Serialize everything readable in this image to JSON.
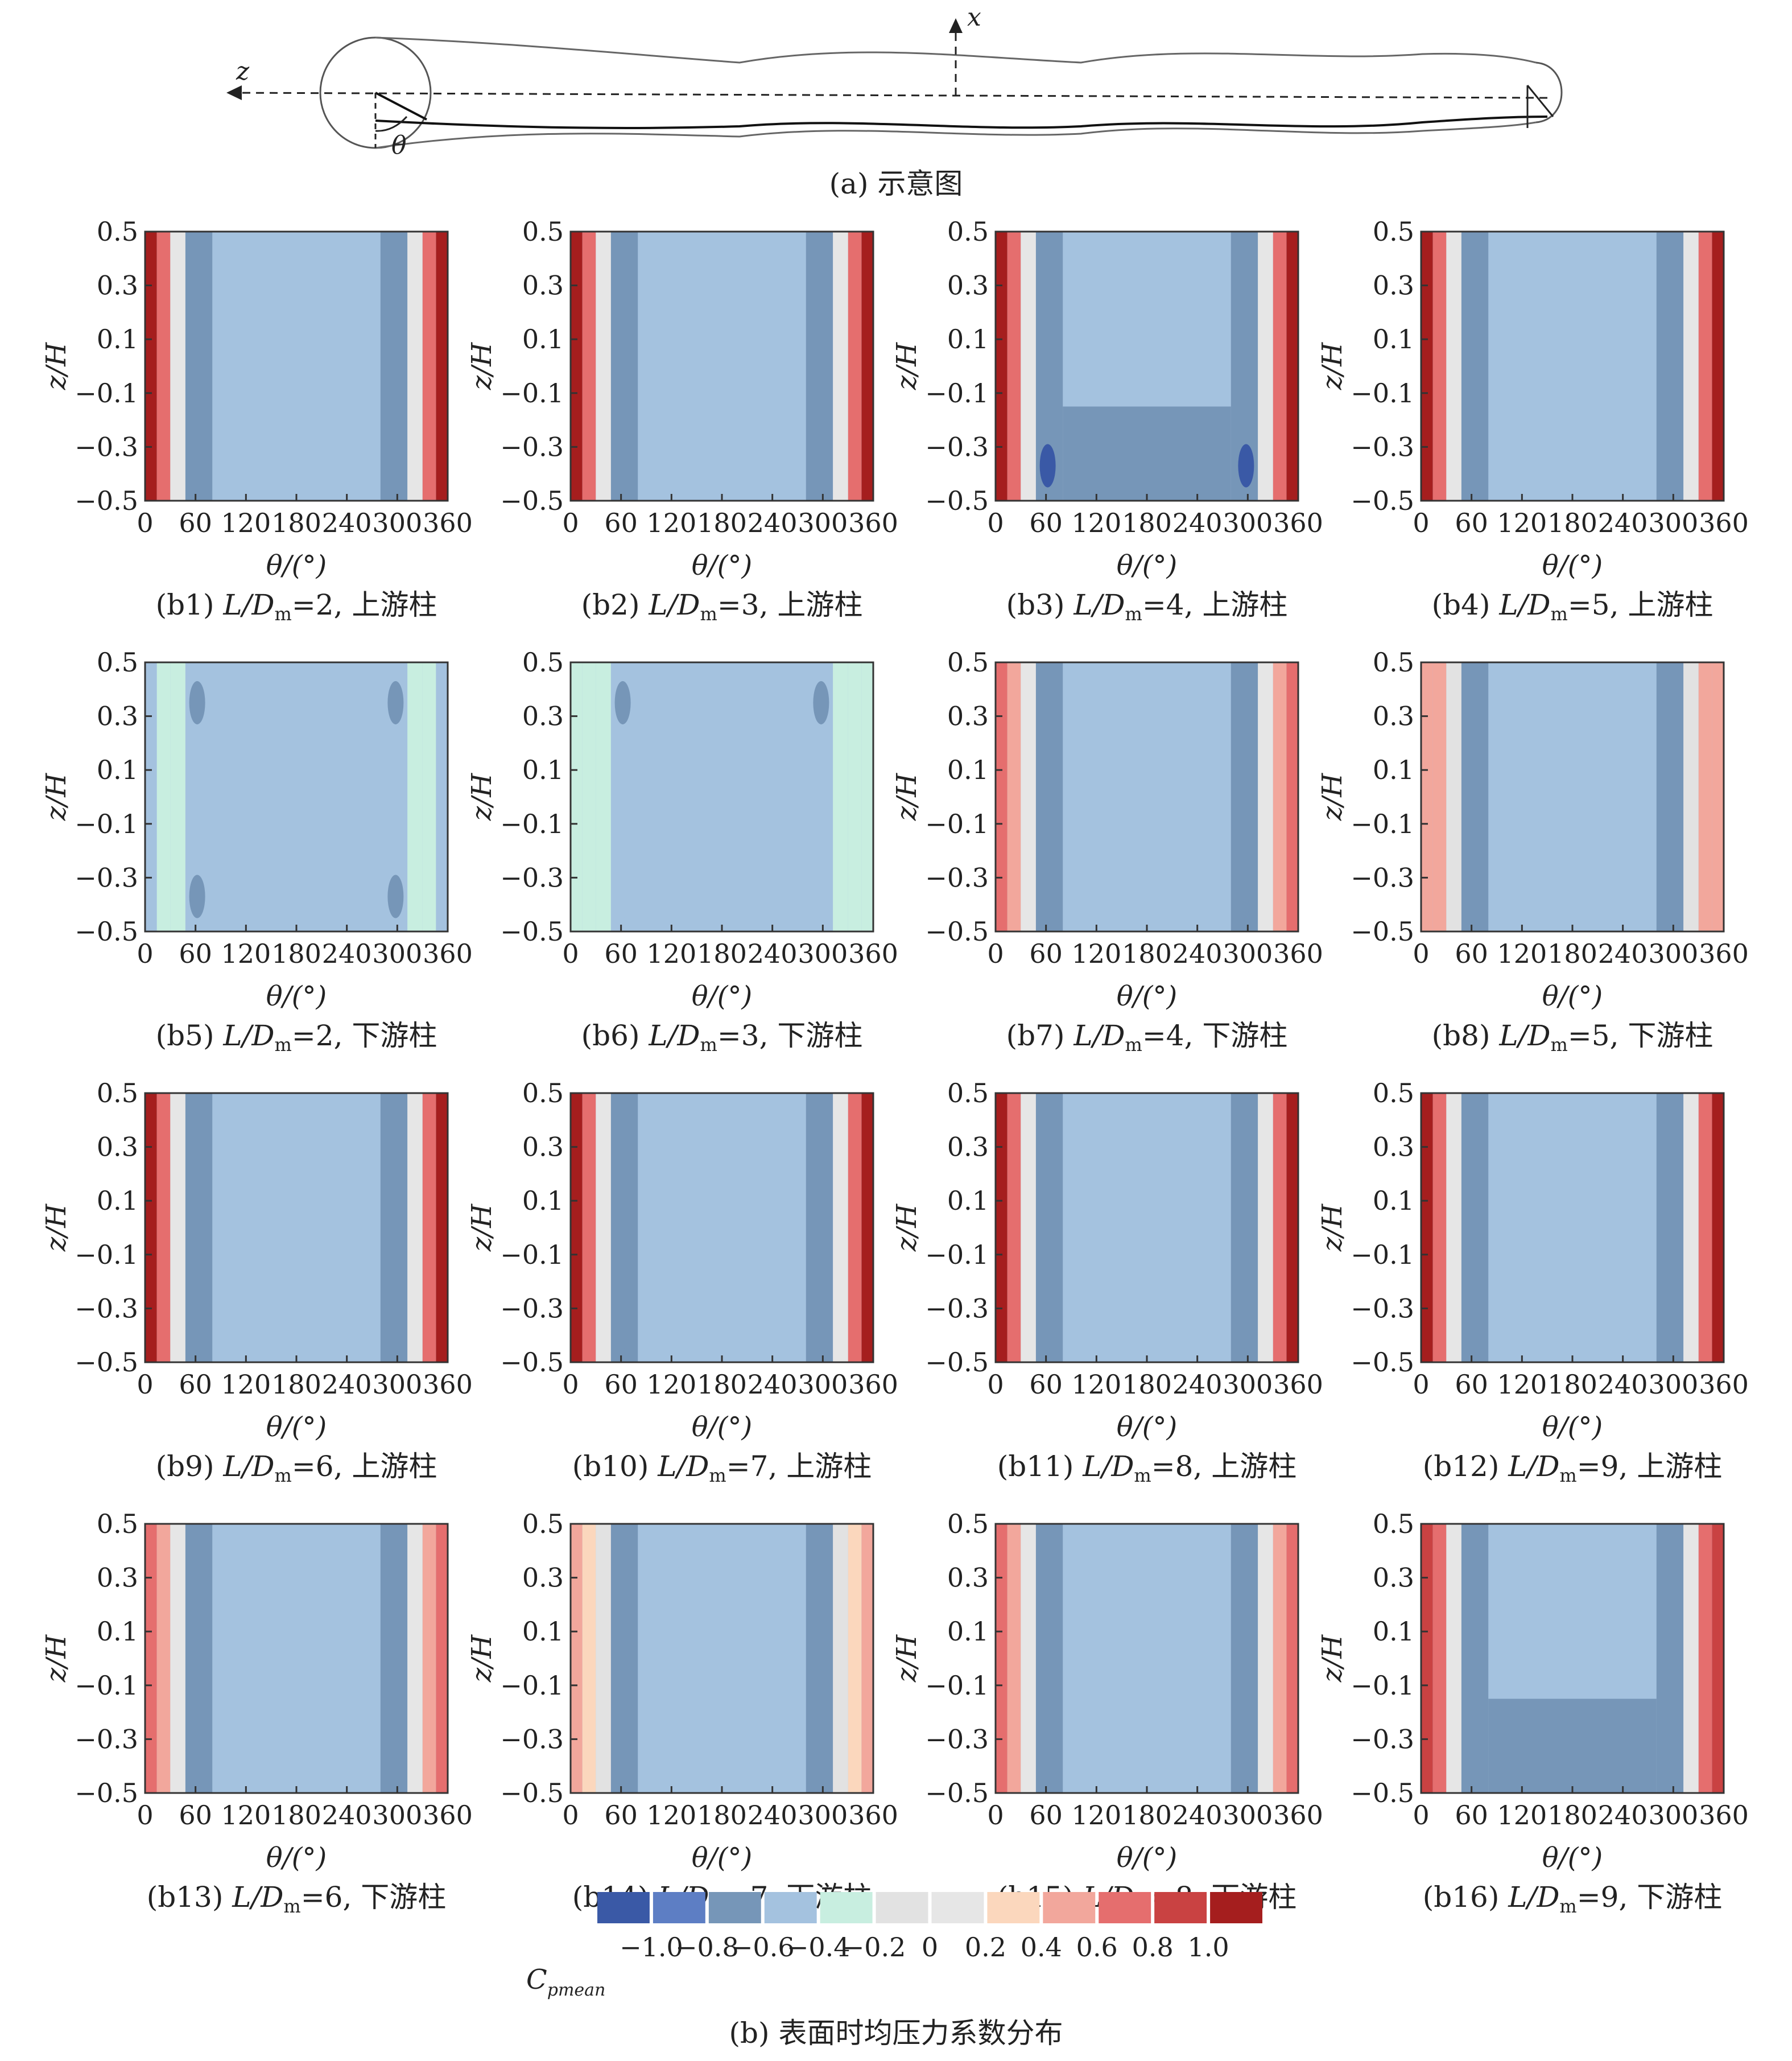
{
  "schematic": {
    "caption": "(a) 示意图",
    "x_label": "x",
    "z_label": "z",
    "theta_label": "θ"
  },
  "panel_axis": {
    "xlabel": "θ/(°)",
    "ylabel": "z/H",
    "x_ticks": [
      "0",
      "60",
      "120",
      "180",
      "240",
      "300",
      "360"
    ],
    "y_ticks": [
      "0.5",
      "0.3",
      "0.1",
      "−0.1",
      "−0.3",
      "−0.5"
    ]
  },
  "legend": {
    "label": "C",
    "label_sub": "pmean",
    "tick_labels": [
      "−1.0",
      "−0.8",
      "−0.6",
      "−0.4",
      "−0.2",
      "0",
      "0.2",
      "0.4",
      "0.6",
      "0.8",
      "1.0"
    ],
    "colors": [
      "#3a59a6",
      "#5d7ec4",
      "#7696b8",
      "#a4c2df",
      "#c8eee0",
      "#e2e2e2",
      "#e6e6e6",
      "#fbd7bd",
      "#f2a79c",
      "#e56e6e",
      "#c94242",
      "#a51e1e"
    ]
  },
  "figure_caption": "(b) 表面时均压力系数分布",
  "chart_data": {
    "type": "heatmap",
    "x_range": [
      0,
      360
    ],
    "y_range": [
      -0.5,
      0.5
    ],
    "value_range": [
      -1.0,
      1.0
    ],
    "panels": [
      {
        "id": "b1",
        "label": "(b1)",
        "ratio": "2",
        "cylinder": "上游柱",
        "center_value": -0.4,
        "center_lower": -0.5,
        "side_value": -0.6,
        "lower_value": -0.6,
        "edge_value": 1.0
      },
      {
        "id": "b2",
        "label": "(b2)",
        "ratio": "3",
        "cylinder": "上游柱",
        "center_value": -0.4,
        "center_lower": -0.4,
        "side_value": -0.6,
        "lower_value": -0.5,
        "edge_value": 1.0
      },
      {
        "id": "b3",
        "label": "(b3)",
        "ratio": "4",
        "cylinder": "上游柱",
        "center_value": -0.4,
        "center_lower": -0.6,
        "side_value": -0.7,
        "lower_value": -0.9,
        "edge_value": 1.0
      },
      {
        "id": "b4",
        "label": "(b4)",
        "ratio": "5",
        "cylinder": "上游柱",
        "center_value": -0.4,
        "center_lower": -0.5,
        "side_value": -0.6,
        "lower_value": -0.7,
        "edge_value": 1.0
      },
      {
        "id": "b5",
        "label": "(b5)",
        "ratio": "2",
        "cylinder": "下游柱",
        "center_value": -0.4,
        "center_lower": -0.5,
        "side_value": -0.5,
        "lower_value": -0.5,
        "edge_value": -0.5
      },
      {
        "id": "b6",
        "label": "(b6)",
        "ratio": "3",
        "cylinder": "下游柱",
        "center_value": -0.4,
        "center_lower": -0.4,
        "side_value": -0.5,
        "lower_value": -0.4,
        "edge_value": -0.3
      },
      {
        "id": "b7",
        "label": "(b7)",
        "ratio": "4",
        "cylinder": "下游柱",
        "center_value": -0.4,
        "center_lower": -0.5,
        "side_value": -0.6,
        "lower_value": -0.6,
        "edge_value": 0.7
      },
      {
        "id": "b8",
        "label": "(b8)",
        "ratio": "5",
        "cylinder": "下游柱",
        "center_value": -0.4,
        "center_lower": -0.5,
        "side_value": -0.6,
        "lower_value": -0.6,
        "edge_value": 0.6
      },
      {
        "id": "b9",
        "label": "(b9)",
        "ratio": "6",
        "cylinder": "上游柱",
        "center_value": -0.4,
        "center_lower": -0.5,
        "side_value": -0.6,
        "lower_value": -0.5,
        "edge_value": 1.0
      },
      {
        "id": "b10",
        "label": "(b10)",
        "ratio": "7",
        "cylinder": "上游柱",
        "center_value": -0.4,
        "center_lower": -0.5,
        "side_value": -0.6,
        "lower_value": -0.5,
        "edge_value": 1.0
      },
      {
        "id": "b11",
        "label": "(b11)",
        "ratio": "8",
        "cylinder": "上游柱",
        "center_value": -0.4,
        "center_lower": -0.5,
        "side_value": -0.6,
        "lower_value": -0.5,
        "edge_value": 1.0
      },
      {
        "id": "b12",
        "label": "(b12)",
        "ratio": "9",
        "cylinder": "上游柱",
        "center_value": -0.4,
        "center_lower": -0.5,
        "side_value": -0.6,
        "lower_value": -0.5,
        "edge_value": 1.0
      },
      {
        "id": "b13",
        "label": "(b13)",
        "ratio": "6",
        "cylinder": "下游柱",
        "center_value": -0.4,
        "center_lower": -0.5,
        "side_value": -0.6,
        "lower_value": -0.5,
        "edge_value": 0.7
      },
      {
        "id": "b14",
        "label": "(b14)",
        "ratio": "7",
        "cylinder": "下游柱",
        "center_value": -0.4,
        "center_lower": -0.5,
        "side_value": -0.6,
        "lower_value": -0.5,
        "edge_value": 0.5
      },
      {
        "id": "b15",
        "label": "(b15)",
        "ratio": "8",
        "cylinder": "下游柱",
        "center_value": -0.5,
        "center_lower": -0.5,
        "side_value": -0.6,
        "lower_value": -0.5,
        "edge_value": 0.7
      },
      {
        "id": "b16",
        "label": "(b16)",
        "ratio": "9",
        "cylinder": "下游柱",
        "center_value": -0.5,
        "center_lower": -0.6,
        "side_value": -0.6,
        "lower_value": -0.6,
        "edge_value": 0.8
      }
    ]
  }
}
